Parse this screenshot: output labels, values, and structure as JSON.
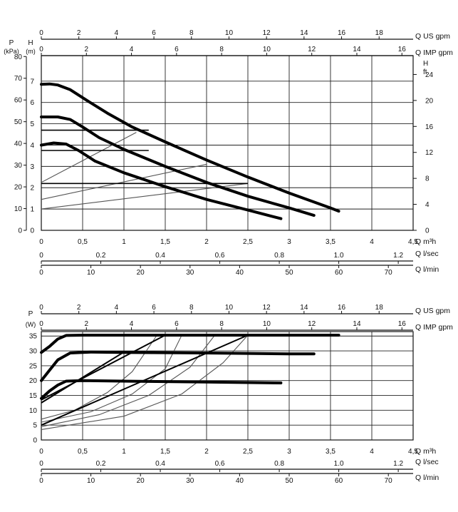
{
  "colors": {
    "ink": "#111111",
    "grid": "#222222",
    "curve": "#000000",
    "system_curve": "#555555"
  },
  "chart_data": [
    {
      "type": "line",
      "name": "head-chart",
      "left_axis_labels": {
        "pressure_title": "P",
        "pressure_unit": "(kPa)",
        "head_title": "H",
        "head_unit": "(m)"
      },
      "right_axis_labels": {
        "title": "H",
        "unit": "ft"
      },
      "xlim": [
        0,
        4.5
      ],
      "ylim_head_m": [
        0,
        8.2
      ],
      "axes": {
        "q_m3h": {
          "label": "Q m³h",
          "ticks": [
            "0",
            "0,5",
            "1",
            "1,5",
            "2",
            "2,5",
            "3",
            "3,5",
            "4",
            "4,5"
          ]
        },
        "head_m": {
          "ticks": [
            "0",
            "1",
            "2",
            "3",
            "4",
            "5",
            "6",
            "7"
          ]
        },
        "pressure_kpa": {
          "ticks": [
            "0",
            "10",
            "20",
            "30",
            "40",
            "50",
            "60",
            "70",
            "80"
          ]
        },
        "head_ft": {
          "ticks": [
            "0",
            "4",
            "8",
            "12",
            "16",
            "20",
            "24"
          ]
        },
        "q_us_gpm": {
          "label": "Q US gpm",
          "ticks": [
            "0",
            "2",
            "4",
            "6",
            "8",
            "10",
            "12",
            "14",
            "16",
            "18"
          ]
        },
        "q_imp_gpm": {
          "label": "Q IMP gpm",
          "ticks": [
            "0",
            "2",
            "4",
            "6",
            "8",
            "10",
            "12",
            "14",
            "16"
          ]
        },
        "q_l_sec": {
          "label": "Q l/sec",
          "ticks": [
            "0",
            "0.2",
            "0.4",
            "0.6",
            "0.8",
            "1.0",
            "1.2"
          ]
        },
        "q_l_min": {
          "label": "Q l/min",
          "ticks": [
            "0",
            "10",
            "20",
            "30",
            "40",
            "50",
            "60",
            "70"
          ]
        }
      },
      "series": [
        {
          "x": [
            0,
            0.1,
            0.2,
            0.35,
            0.55,
            0.8,
            1.1,
            1.5,
            2.0,
            2.5,
            3.0,
            3.5,
            3.6
          ],
          "y": [
            6.85,
            6.87,
            6.82,
            6.6,
            6.1,
            5.5,
            4.85,
            4.15,
            3.3,
            2.5,
            1.75,
            1.05,
            0.9
          ]
        },
        {
          "x": [
            0,
            0.2,
            0.35,
            0.5,
            0.7,
            1.0,
            1.5,
            2.0,
            2.5,
            3.0,
            3.3
          ],
          "y": [
            5.32,
            5.32,
            5.2,
            4.85,
            4.35,
            3.8,
            3.0,
            2.25,
            1.6,
            1.05,
            0.7
          ]
        },
        {
          "x": [
            0,
            0.15,
            0.3,
            0.45,
            0.65,
            1.0,
            1.5,
            2.0,
            2.5,
            2.9
          ],
          "y": [
            4.0,
            4.1,
            4.05,
            3.75,
            3.25,
            2.7,
            2.05,
            1.45,
            0.95,
            0.55
          ]
        }
      ],
      "system_curves": [
        {
          "x": [
            0,
            1.15
          ],
          "y": [
            2.25,
            4.6
          ]
        },
        {
          "x": [
            0,
            2.0
          ],
          "y": [
            1.45,
            3.1
          ]
        },
        {
          "x": [
            0,
            2.5
          ],
          "y": [
            1.0,
            2.2
          ]
        }
      ],
      "operating_points": [
        {
          "x": [
            0,
            1.3
          ],
          "y": [
            4.7,
            4.7
          ]
        },
        {
          "x": [
            0,
            1.3
          ],
          "y": [
            3.75,
            3.75
          ]
        },
        {
          "x": [
            0,
            2.5
          ],
          "y": [
            2.2,
            2.2
          ]
        }
      ]
    },
    {
      "type": "line",
      "name": "power-chart",
      "left_axis_labels": {
        "title": "P",
        "unit": "(W)"
      },
      "xlim": [
        0,
        4.5
      ],
      "ylim": [
        0,
        36.5
      ],
      "axes": {
        "q_m3h": {
          "label": "Q m³h",
          "ticks": [
            "0",
            "0,5",
            "1",
            "1,5",
            "2",
            "2,5",
            "3",
            "3,5",
            "4",
            "4,5"
          ]
        },
        "power_w": {
          "ticks": [
            "0",
            "5",
            "10",
            "15",
            "20",
            "25",
            "30",
            "35"
          ]
        },
        "q_us_gpm": {
          "label": "Q US gpm",
          "ticks": [
            "0",
            "2",
            "4",
            "6",
            "8",
            "10",
            "12",
            "14",
            "16",
            "18"
          ]
        },
        "q_imp_gpm": {
          "label": "Q IMP gpm",
          "ticks": [
            "0",
            "2",
            "4",
            "6",
            "8",
            "10",
            "12",
            "14",
            "16"
          ]
        },
        "q_l_sec": {
          "label": "Q l/sec",
          "ticks": [
            "0",
            "0.2",
            "0.4",
            "0.6",
            "0.8",
            "1.0",
            "1.2"
          ]
        },
        "q_l_min": {
          "label": "Q l/min",
          "ticks": [
            "0",
            "10",
            "20",
            "30",
            "40",
            "50",
            "60",
            "70"
          ]
        }
      },
      "series": [
        {
          "x": [
            0,
            0.1,
            0.2,
            0.3,
            0.5,
            1.0,
            2.0,
            3.0,
            3.6
          ],
          "y": [
            29.5,
            31.5,
            34.0,
            35.2,
            35.3,
            35.3,
            35.3,
            35.3,
            35.3
          ]
        },
        {
          "x": [
            0,
            0.1,
            0.2,
            0.35,
            0.6,
            1.0,
            2.0,
            3.0,
            3.3
          ],
          "y": [
            20.0,
            23.5,
            27.0,
            29.3,
            29.6,
            29.5,
            29.3,
            29.0,
            29.0
          ]
        },
        {
          "x": [
            0,
            0.1,
            0.2,
            0.3,
            0.5,
            1.0,
            2.0,
            2.9
          ],
          "y": [
            14.0,
            16.5,
            18.5,
            19.8,
            20.0,
            19.8,
            19.5,
            19.2
          ]
        }
      ],
      "bold_ramps": [
        {
          "x": [
            0,
            1.0
          ],
          "y": [
            12.5,
            29.6
          ]
        },
        {
          "x": [
            0,
            1.5
          ],
          "y": [
            13.5,
            35.3
          ]
        },
        {
          "x": [
            0,
            2.5
          ],
          "y": [
            5.0,
            35.3
          ]
        }
      ],
      "system_curves": [
        {
          "x": [
            0,
            0.4,
            0.8,
            1.1,
            1.4
          ],
          "y": [
            7.0,
            10.0,
            16.0,
            23.0,
            35.3
          ]
        },
        {
          "x": [
            0,
            0.6,
            1.1,
            1.5,
            1.7
          ],
          "y": [
            6.0,
            9.5,
            15.5,
            24.0,
            35.3
          ]
        },
        {
          "x": [
            0,
            0.7,
            1.3,
            1.8,
            2.1
          ],
          "y": [
            4.5,
            8.5,
            15.0,
            24.5,
            35.3
          ]
        },
        {
          "x": [
            0,
            1.0,
            1.7,
            2.2,
            2.5
          ],
          "y": [
            3.5,
            8.0,
            15.5,
            26.0,
            35.3
          ]
        }
      ]
    }
  ]
}
